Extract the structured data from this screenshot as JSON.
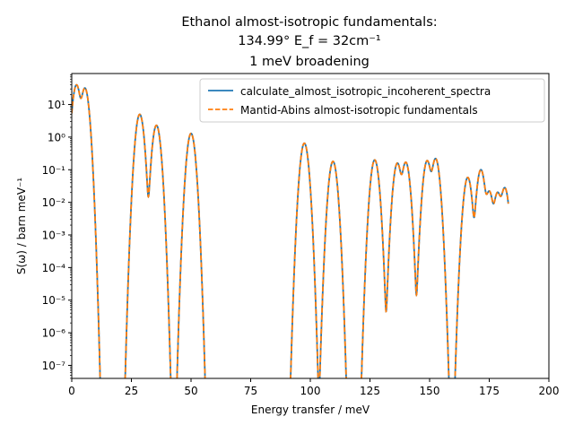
{
  "chart_data": {
    "type": "line",
    "title_lines": [
      "Ethanol almost-isotropic fundamentals:",
      "134.99° E_f = 32cm⁻¹",
      "1 meV broadening"
    ],
    "xlabel": "Energy transfer / meV",
    "ylabel": "S(ω) / barn meV⁻¹",
    "xlim": [
      0,
      200
    ],
    "ylim_log10": [
      -7.4,
      1.95
    ],
    "y_scale": "log",
    "grid": false,
    "legend_placement": "top-right",
    "x_ticks": [
      0,
      25,
      50,
      75,
      100,
      125,
      150,
      175,
      200
    ],
    "y_ticks": [
      {
        "exp": 1,
        "label": "10¹"
      },
      {
        "exp": 0,
        "label": "10⁰"
      },
      {
        "exp": -1,
        "label": "10⁻¹"
      },
      {
        "exp": -2,
        "label": "10⁻²"
      },
      {
        "exp": -3,
        "label": "10⁻³"
      },
      {
        "exp": -4,
        "label": "10⁻⁴"
      },
      {
        "exp": -5,
        "label": "10⁻⁵"
      },
      {
        "exp": -6,
        "label": "10⁻⁶"
      },
      {
        "exp": -7,
        "label": "10⁻⁷"
      }
    ],
    "broadening_sigma_meV": 1.0,
    "peaks": [
      {
        "x": 2.0,
        "y": 40
      },
      {
        "x": 5.5,
        "y": 32
      },
      {
        "x": 28.5,
        "y": 5.0
      },
      {
        "x": 35.5,
        "y": 2.3
      },
      {
        "x": 50.0,
        "y": 1.3
      },
      {
        "x": 97.5,
        "y": 0.65
      },
      {
        "x": 109.5,
        "y": 0.18
      },
      {
        "x": 127.0,
        "y": 0.2
      },
      {
        "x": 136.5,
        "y": 0.16
      },
      {
        "x": 140.0,
        "y": 0.17
      },
      {
        "x": 149.0,
        "y": 0.19
      },
      {
        "x": 152.5,
        "y": 0.22
      },
      {
        "x": 166.0,
        "y": 0.058
      },
      {
        "x": 171.5,
        "y": 0.1
      },
      {
        "x": 175.0,
        "y": 0.022
      },
      {
        "x": 178.5,
        "y": 0.02
      },
      {
        "x": 181.5,
        "y": 0.028
      }
    ],
    "series": [
      {
        "name": "calculate_almost_isotropic_incoherent_spectra",
        "color": "#1f77b4",
        "style": "solid"
      },
      {
        "name": "Mantid-Abins almost-isotropic fundamentals",
        "color": "#ff7f0e",
        "style": "dashed"
      }
    ]
  }
}
